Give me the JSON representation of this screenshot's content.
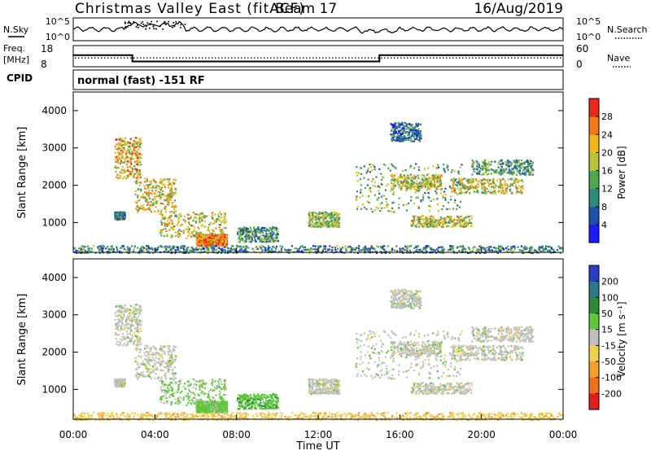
{
  "header": {
    "title": "Christmas Valley East (fitACF)",
    "beam": "Beam 17",
    "date": "16/Aug/2019"
  },
  "noise_panel": {
    "left_label": "N.Sky",
    "left_ticks": [
      "10^5",
      "10^0"
    ],
    "right_ticks": [
      "10^5",
      "10^0"
    ],
    "right_label": "N.Search"
  },
  "freq_panel": {
    "left_label_1": "Freq.",
    "left_label_2": "[MHz]",
    "left_ticks": [
      "18",
      "8"
    ],
    "right_ticks": [
      "60",
      "0"
    ],
    "right_label": "Nave"
  },
  "cpid": {
    "label": "CPID",
    "text": "normal (fast) -151 RF"
  },
  "power_panel": {
    "ylabel": "Slant Range [km]",
    "yticks": [
      "1000",
      "2000",
      "3000",
      "4000"
    ],
    "colorbar_label": "Power [dB]",
    "colorbar_ticks": [
      "4",
      "8",
      "12",
      "16",
      "20",
      "24",
      "28"
    ],
    "colors": [
      "#1a1aff",
      "#1f4fa8",
      "#2f8a7a",
      "#4fa84f",
      "#b9c43a",
      "#f0b81a",
      "#f07a1a",
      "#e8281a"
    ]
  },
  "velocity_panel": {
    "ylabel": "Slant Range [km]",
    "yticks": [
      "1000",
      "2000",
      "3000",
      "4000"
    ],
    "colorbar_label": "Velocity [m s⁻¹]",
    "colorbar_ticks": [
      "200",
      "100",
      "50",
      "15",
      "-15",
      "-50",
      "-100",
      "-200"
    ],
    "colors": [
      "#2a3fbf",
      "#2a7a8a",
      "#2f8a3a",
      "#5fc83a",
      "#c0c0c0",
      "#f0d050",
      "#f0a030",
      "#f07020",
      "#e02020"
    ],
    "ground_scatter_color": "#c0c0c0"
  },
  "xaxis": {
    "label": "Time UT",
    "ticks": [
      "00:00",
      "04:00",
      "08:00",
      "12:00",
      "16:00",
      "20:00",
      "00:00"
    ]
  },
  "chart_data": {
    "type": "heatmap",
    "title": "Christmas Valley East (fitACF)",
    "xlabel": "Time UT",
    "ylabel": "Slant Range [km]",
    "xlim": [
      0,
      24
    ],
    "ylim": [
      200,
      4500
    ],
    "power_colorbar_range": [
      0,
      32
    ],
    "velocity_colorbar_range": [
      -250,
      250
    ],
    "freq_mhz": {
      "x": [
        0,
        2.9,
        2.9,
        15.0,
        15.0,
        24
      ],
      "y": [
        13.5,
        13.5,
        10.5,
        10.5,
        13.5,
        13.5
      ]
    },
    "nave_level": 25,
    "echo_regions": [
      {
        "t": [
          2.0,
          3.3
        ],
        "r": [
          2200,
          3300
        ],
        "power": 22,
        "velocity": 0
      },
      {
        "t": [
          3.0,
          5.0
        ],
        "r": [
          1300,
          2200
        ],
        "power": 20,
        "velocity": 0
      },
      {
        "t": [
          2.0,
          2.5
        ],
        "r": [
          1100,
          1300
        ],
        "power": 10,
        "velocity": 0
      },
      {
        "t": [
          4.2,
          7.5
        ],
        "r": [
          600,
          1300
        ],
        "power": 19,
        "velocity": 20
      },
      {
        "t": [
          6.0,
          7.5
        ],
        "r": [
          400,
          700
        ],
        "power": 26,
        "velocity": 30
      },
      {
        "t": [
          8.0,
          10.0
        ],
        "r": [
          500,
          900
        ],
        "power": 12,
        "velocity": 40
      },
      {
        "t": [
          11.5,
          13.0
        ],
        "r": [
          900,
          1300
        ],
        "power": 16,
        "velocity": 0
      },
      {
        "t": [
          13.8,
          19.0
        ],
        "r": [
          1300,
          2600
        ],
        "power": 14,
        "velocity": 0
      },
      {
        "t": [
          16.5,
          19.5
        ],
        "r": [
          900,
          1200
        ],
        "power": 19,
        "velocity": 0
      },
      {
        "t": [
          15.5,
          18.0
        ],
        "r": [
          1900,
          2300
        ],
        "power": 18,
        "velocity": 0
      },
      {
        "t": [
          18.5,
          22.0
        ],
        "r": [
          1800,
          2200
        ],
        "power": 19,
        "velocity": 0
      },
      {
        "t": [
          19.5,
          22.5
        ],
        "r": [
          2300,
          2700
        ],
        "power": 12,
        "velocity": 0
      },
      {
        "t": [
          15.5,
          17.0
        ],
        "r": [
          3200,
          3700
        ],
        "power": 8,
        "velocity": 0
      },
      {
        "t": [
          0.0,
          24.0
        ],
        "r": [
          200,
          400
        ],
        "power": 10,
        "velocity": -40
      }
    ]
  }
}
